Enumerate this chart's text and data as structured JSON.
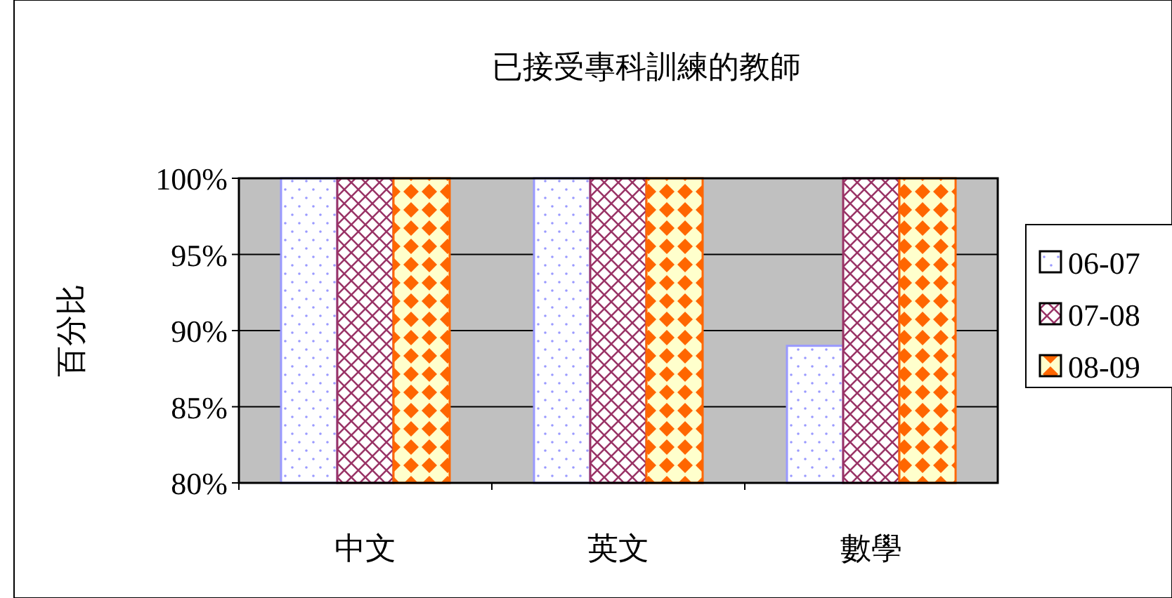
{
  "chart_data": {
    "type": "bar",
    "title": "已接受專科訓練的教師",
    "ylabel": "百分比",
    "categories": [
      "中文",
      "英文",
      "數學"
    ],
    "series": [
      {
        "name": "06-07",
        "color": "#9999ff",
        "values": [
          100,
          100,
          89
        ]
      },
      {
        "name": "07-08",
        "color": "#993366",
        "values": [
          100,
          100,
          100
        ]
      },
      {
        "name": "08-09",
        "color": "#ff6600",
        "values": [
          100,
          100,
          100
        ]
      }
    ],
    "ylim": [
      80,
      100
    ],
    "yticks": [
      {
        "value": 80,
        "label": "80%"
      },
      {
        "value": 85,
        "label": "85%"
      },
      {
        "value": 90,
        "label": "90%"
      },
      {
        "value": 95,
        "label": "95%"
      },
      {
        "value": 100,
        "label": "100%"
      }
    ],
    "grid": "y",
    "legend": "right"
  }
}
